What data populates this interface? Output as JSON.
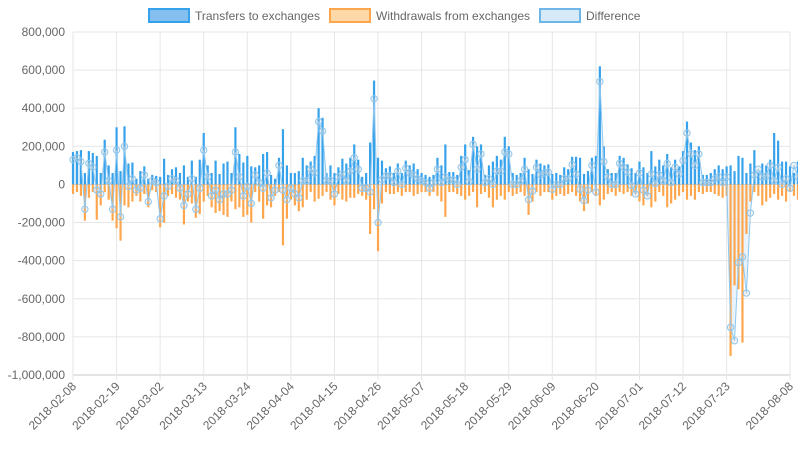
{
  "chart_data": {
    "type": "bar",
    "legend_position": "top",
    "grid": true,
    "y_ticks": [
      "800,000",
      "600,000",
      "400,000",
      "200,000",
      "0",
      "-200,000",
      "-400,000",
      "-600,000",
      "-800,000",
      "-1,000,000"
    ],
    "y_tick_values": [
      800000,
      600000,
      400000,
      200000,
      0,
      -200000,
      -400000,
      -600000,
      -800000,
      -1000000
    ],
    "ylim": [
      -1000000,
      800000
    ],
    "x_ticks": [
      "2018-02-08",
      "2018-02-19",
      "2018-03-02",
      "2018-03-13",
      "2018-03-24",
      "2018-04-04",
      "2018-04-15",
      "2018-04-26",
      "2018-05-07",
      "2018-05-18",
      "2018-05-29",
      "2018-06-09",
      "2018-06-20",
      "2018-07-01",
      "2018-07-12",
      "2018-07-23",
      "2018-08-08"
    ],
    "x_start": "2018-02-08",
    "x_end": "2018-08-08",
    "series": [
      {
        "name": "Transfers to exchanges",
        "type": "bar",
        "color": "#36a2eb",
        "values": [
          170000,
          175000,
          180000,
          60000,
          175000,
          165000,
          150000,
          60000,
          235000,
          100000,
          60000,
          300000,
          70000,
          305000,
          110000,
          115000,
          30000,
          70000,
          95000,
          30000,
          50000,
          45000,
          40000,
          135000,
          50000,
          80000,
          90000,
          60000,
          100000,
          40000,
          125000,
          40000,
          130000,
          270000,
          100000,
          60000,
          125000,
          55000,
          110000,
          120000,
          60000,
          300000,
          160000,
          115000,
          150000,
          95000,
          90000,
          100000,
          160000,
          170000,
          50000,
          30000,
          140000,
          290000,
          100000,
          60000,
          60000,
          70000,
          140000,
          100000,
          120000,
          150000,
          400000,
          350000,
          60000,
          100000,
          60000,
          90000,
          135000,
          110000,
          140000,
          210000,
          130000,
          40000,
          60000,
          220000,
          545000,
          140000,
          125000,
          85000,
          95000,
          60000,
          110000,
          60000,
          125000,
          100000,
          110000,
          80000,
          60000,
          50000,
          40000,
          50000,
          140000,
          100000,
          210000,
          65000,
          65000,
          50000,
          150000,
          210000,
          75000,
          250000,
          200000,
          210000,
          50000,
          100000,
          120000,
          150000,
          130000,
          250000,
          200000,
          60000,
          50000,
          60000,
          140000,
          80000,
          55000,
          130000,
          110000,
          100000,
          105000,
          55000,
          60000,
          50000,
          90000,
          80000,
          145000,
          145000,
          140000,
          55000,
          70000,
          140000,
          150000,
          620000,
          200000,
          80000,
          60000,
          60000,
          150000,
          140000,
          105000,
          85000,
          60000,
          120000,
          90000,
          60000,
          175000,
          95000,
          130000,
          100000,
          160000,
          90000,
          130000,
          95000,
          175000,
          330000,
          220000,
          180000,
          200000,
          50000,
          50000,
          60000,
          80000,
          100000,
          80000,
          95000,
          100000,
          70000,
          150000,
          140000,
          60000,
          110000,
          180000,
          60000,
          110000,
          100000,
          130000,
          270000,
          230000,
          120000,
          120000,
          95000,
          60000,
          120000,
          100000,
          60000,
          90000,
          60000,
          100000,
          65000,
          100000,
          80000,
          50000,
          60000,
          100000,
          140000,
          60000,
          130000,
          90000,
          80000,
          60000,
          90000,
          245000,
          230000,
          95000,
          120000,
          160000
        ],
        "anomalies": [
          {
            "index": 176,
            "value": 100000
          },
          {
            "index": 181,
            "value": 200000
          }
        ]
      },
      {
        "name": "Withdrawals from exchanges",
        "type": "bar",
        "color": "#ffa64d",
        "values": [
          -50000,
          -40000,
          -60000,
          -190000,
          -70000,
          -40000,
          -185000,
          -110000,
          -40000,
          -80000,
          -190000,
          -230000,
          -295000,
          -110000,
          -120000,
          -90000,
          -60000,
          -90000,
          -50000,
          -120000,
          -30000,
          -40000,
          -225000,
          -200000,
          -60000,
          -50000,
          -70000,
          -80000,
          -210000,
          -90000,
          -100000,
          -175000,
          -155000,
          -90000,
          -60000,
          -120000,
          -150000,
          -140000,
          -160000,
          -170000,
          -90000,
          -130000,
          -120000,
          -170000,
          -160000,
          -200000,
          -40000,
          -90000,
          -180000,
          -110000,
          -120000,
          -60000,
          -40000,
          -320000,
          -180000,
          -80000,
          -110000,
          -140000,
          -120000,
          -80000,
          -40000,
          -90000,
          -75000,
          -60000,
          -40000,
          -80000,
          -110000,
          -50000,
          -80000,
          -90000,
          -70000,
          -70000,
          -50000,
          -60000,
          -80000,
          -260000,
          -130000,
          -350000,
          -100000,
          -40000,
          -50000,
          -50000,
          -40000,
          -60000,
          -40000,
          -40000,
          -60000,
          -50000,
          -40000,
          -40000,
          -60000,
          -40000,
          -60000,
          -90000,
          -170000,
          -40000,
          -40000,
          -50000,
          -60000,
          -80000,
          -60000,
          -40000,
          -120000,
          -50000,
          -40000,
          -70000,
          -120000,
          -80000,
          -60000,
          -80000,
          -40000,
          -60000,
          -50000,
          -40000,
          -60000,
          -160000,
          -90000,
          -40000,
          -60000,
          -40000,
          -40000,
          -80000,
          -60000,
          -50000,
          -60000,
          -50000,
          -40000,
          -60000,
          -90000,
          -140000,
          -100000,
          -40000,
          -60000,
          -110000,
          -80000,
          -50000,
          -40000,
          -60000,
          -40000,
          -50000,
          -40000,
          -60000,
          -50000,
          -90000,
          -110000,
          -60000,
          -120000,
          -90000,
          -40000,
          -60000,
          -120000,
          -100000,
          -80000,
          -60000,
          -40000,
          -80000,
          -60000,
          -80000,
          -40000,
          -50000,
          -40000,
          -40000,
          -50000,
          -60000,
          -70000,
          -60000,
          -900000,
          -530000,
          -550000,
          -830000,
          -260000,
          -90000,
          -40000,
          -60000,
          -110000,
          -90000,
          -70000,
          -50000,
          -80000,
          -60000,
          -90000,
          -40000,
          -60000,
          -80000,
          -50000,
          -120000,
          -150000,
          -60000,
          -100000,
          -40000,
          -60000,
          -80000,
          -100000,
          -70000,
          -120000,
          -80000,
          -40000,
          -50000,
          -60000,
          -80000,
          -40000,
          -150000,
          -300000
        ]
      },
      {
        "name": "Difference",
        "type": "line",
        "color": "#36a2eb",
        "fill": "#d6eaf8",
        "values": [
          130000,
          140000,
          120000,
          -130000,
          110000,
          90000,
          -30000,
          -50000,
          170000,
          20000,
          -130000,
          180000,
          -170000,
          200000,
          -10000,
          30000,
          -30000,
          -20000,
          50000,
          -90000,
          20000,
          10000,
          -180000,
          -60000,
          -10000,
          30000,
          20000,
          -20000,
          -110000,
          -50000,
          30000,
          -130000,
          -20000,
          180000,
          40000,
          -60000,
          -30000,
          -80000,
          -50000,
          -50000,
          -30000,
          170000,
          40000,
          -60000,
          -10000,
          -100000,
          50000,
          10000,
          -20000,
          60000,
          -70000,
          -30000,
          100000,
          -30000,
          -80000,
          -20000,
          -50000,
          -70000,
          20000,
          20000,
          80000,
          60000,
          330000,
          280000,
          20000,
          20000,
          -50000,
          40000,
          55000,
          20000,
          70000,
          140000,
          80000,
          -20000,
          -20000,
          -40000,
          450000,
          -200000,
          25000,
          45000,
          45000,
          10000,
          70000,
          0,
          85000,
          60000,
          50000,
          30000,
          20000,
          10000,
          -20000,
          10000,
          80000,
          10000,
          40000,
          25000,
          25000,
          0,
          90000,
          130000,
          15000,
          210000,
          80000,
          160000,
          10000,
          30000,
          0,
          70000,
          70000,
          170000,
          160000,
          0,
          0,
          20000,
          80000,
          -80000,
          -35000,
          90000,
          50000,
          60000,
          65000,
          -25000,
          0,
          0,
          30000,
          30000,
          105000,
          55000,
          -25000,
          -85000,
          -30000,
          100000,
          -40000,
          540000,
          120000,
          40000,
          0,
          0,
          110000,
          90000,
          65000,
          -5000,
          -50000,
          60000,
          -30000,
          -60000,
          55000,
          5000,
          50000,
          20000,
          110000,
          10000,
          90000,
          55000,
          125000,
          270000,
          160000,
          100000,
          160000,
          10000,
          10000,
          10000,
          30000,
          40000,
          10000,
          40000,
          -750000,
          -820000,
          -410000,
          -380000,
          -570000,
          -150000,
          50000,
          80000,
          40000,
          45000,
          100000,
          20000,
          90000,
          0,
          30000,
          -20000,
          100000,
          40000,
          40000,
          20000,
          -100000,
          -80000,
          30000,
          -20000,
          40000,
          -20000,
          20000,
          -60000,
          10000,
          60000,
          20000,
          -10000,
          70000,
          60000,
          100000,
          -140000
        ]
      }
    ]
  }
}
